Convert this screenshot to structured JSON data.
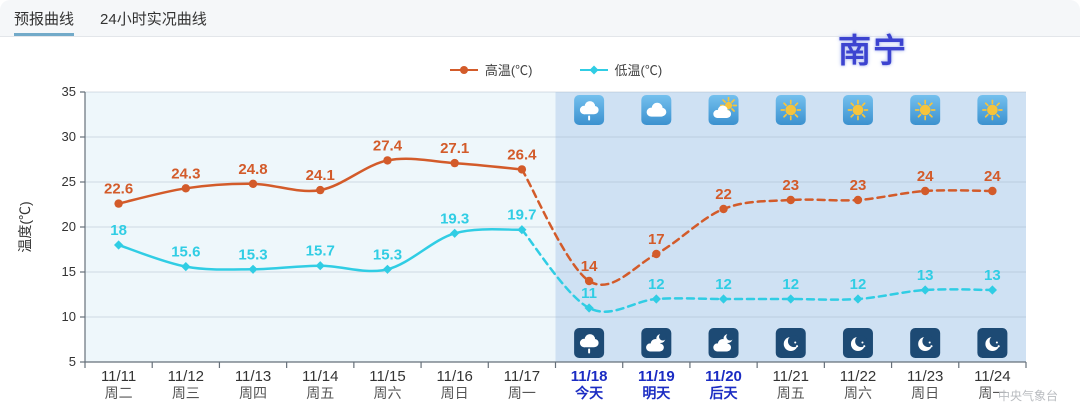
{
  "header": {
    "tabs": [
      {
        "label": "预报曲线",
        "active": true
      },
      {
        "label": "24小时实况曲线",
        "active": false
      }
    ]
  },
  "city_label": "南宁",
  "watermark": "中央气象台",
  "colors": {
    "tab_underline": "#72aac9",
    "city_text": "#3c43d0",
    "city_halo": "#b9c4f2",
    "history_bg": "#eef7fb",
    "forecast_bg": "#cfe1f3",
    "grid_line": "#9db0c0",
    "axis_line": "#66707a",
    "highlight_label": "#1b2cc3",
    "label_date": "#333333",
    "label_day": "#555555",
    "day_icon_bg_top": "#74c0ee",
    "day_icon_bg_bottom": "#3b91cf",
    "night_icon_bg": "#1d4a74",
    "sun_color": "#f6c43c"
  },
  "chart_data": {
    "type": "line",
    "title": "",
    "ylabel": "温度(℃)",
    "ylim": [
      5,
      35
    ],
    "ytick_step": 5,
    "grid": true,
    "legend_position": "top-center",
    "categories": [
      {
        "date": "11/11",
        "day": "周二",
        "highlight": false
      },
      {
        "date": "11/12",
        "day": "周三",
        "highlight": false
      },
      {
        "date": "11/13",
        "day": "周四",
        "highlight": false
      },
      {
        "date": "11/14",
        "day": "周五",
        "highlight": false
      },
      {
        "date": "11/15",
        "day": "周六",
        "highlight": false
      },
      {
        "date": "11/16",
        "day": "周日",
        "highlight": false
      },
      {
        "date": "11/17",
        "day": "周一",
        "highlight": false
      },
      {
        "date": "11/18",
        "day": "今天",
        "highlight": true
      },
      {
        "date": "11/19",
        "day": "明天",
        "highlight": true
      },
      {
        "date": "11/20",
        "day": "后天",
        "highlight": true
      },
      {
        "date": "11/21",
        "day": "周五",
        "highlight": false
      },
      {
        "date": "11/22",
        "day": "周六",
        "highlight": false
      },
      {
        "date": "11/23",
        "day": "周日",
        "highlight": false
      },
      {
        "date": "11/24",
        "day": "周一",
        "highlight": false
      }
    ],
    "series": [
      {
        "name": "高温(℃)",
        "color": "#d35b2a",
        "marker": "circle",
        "values": [
          22.6,
          24.3,
          24.8,
          24.1,
          27.4,
          27.1,
          26.4,
          14,
          17,
          22,
          23,
          23,
          24,
          24
        ]
      },
      {
        "name": "低温(℃)",
        "color": "#30cde4",
        "marker": "diamond",
        "values": [
          18,
          15.6,
          15.3,
          15.7,
          15.3,
          19.3,
          19.7,
          11,
          12,
          12,
          12,
          12,
          13,
          13
        ]
      }
    ],
    "forecast_start_index": 7,
    "solid_until_index": 6,
    "day_icons": [
      "rain",
      "cloudy",
      "cloudy-sun",
      "sunny",
      "sunny",
      "sunny",
      "sunny"
    ],
    "night_icons": [
      "night-rain",
      "night-cloud",
      "night-cloud",
      "moon",
      "moon",
      "moon",
      "moon"
    ]
  }
}
